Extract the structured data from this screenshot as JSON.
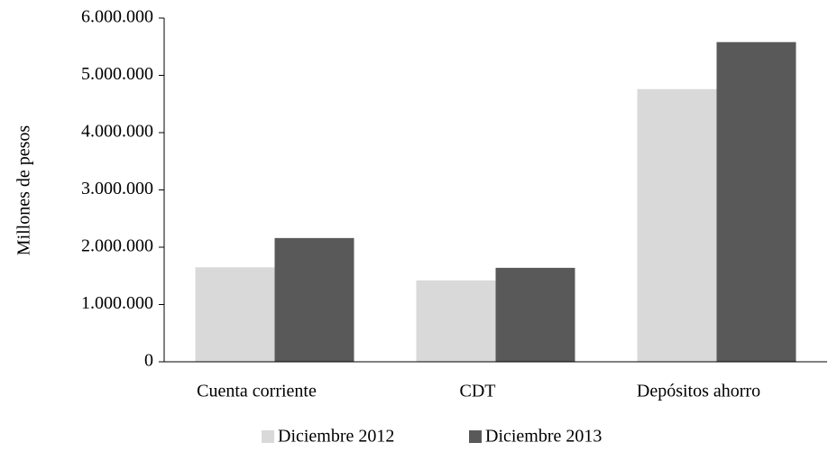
{
  "chart_data": {
    "type": "bar",
    "categories": [
      "Cuenta corriente",
      "CDT",
      "Depósitos ahorro"
    ],
    "series": [
      {
        "name": "Diciembre 2012",
        "color": "#d9d9d9",
        "values": [
          1650000,
          1420000,
          4760000
        ]
      },
      {
        "name": "Diciembre 2013",
        "color": "#595959",
        "values": [
          2160000,
          1640000,
          5580000
        ]
      }
    ],
    "ylabel": "Millones de pesos",
    "ylim": [
      0,
      6000000
    ],
    "yticks": [
      0,
      {
        "value": 1000000,
        "label": "1.000.000"
      },
      {
        "value": 2000000,
        "label": "2.000.000"
      },
      {
        "value": 3000000,
        "label": "3.000.000"
      },
      {
        "value": 4000000,
        "label": "4.000.000"
      },
      {
        "value": 5000000,
        "label": "5.000.000"
      },
      {
        "value": 6000000,
        "label": "6.000.000"
      }
    ],
    "legend": "bottom"
  }
}
